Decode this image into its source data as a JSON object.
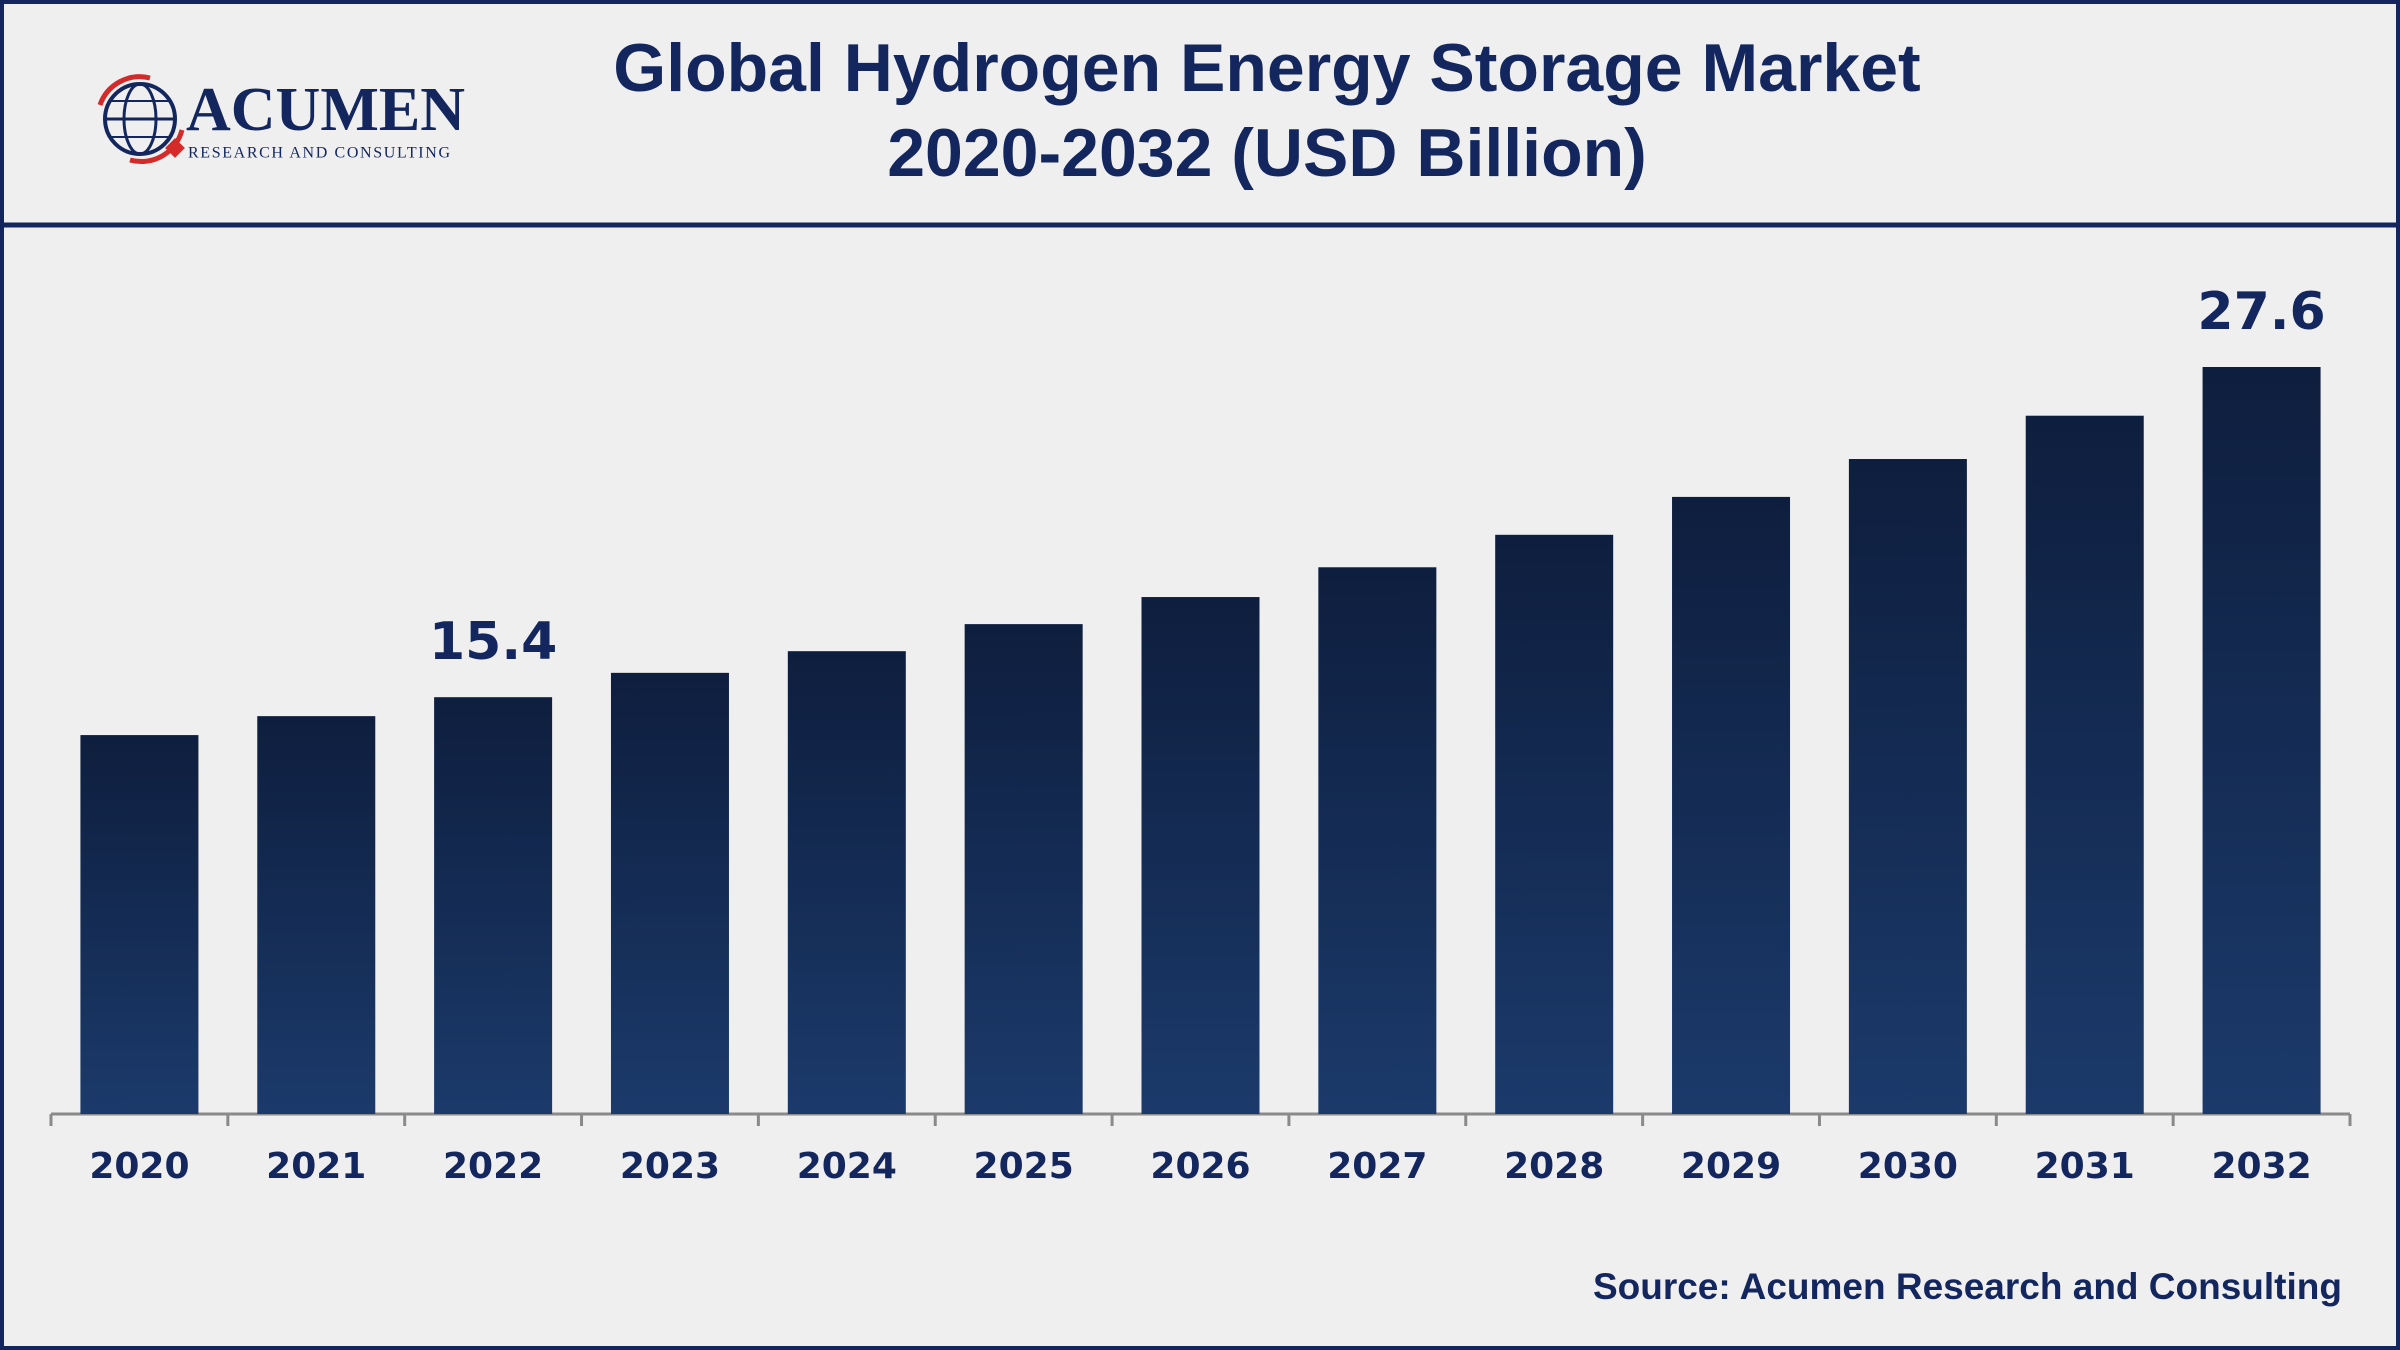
{
  "logo": {
    "name": "ACUMEN",
    "tagline": "RESEARCH AND CONSULTING"
  },
  "chart_data": {
    "type": "bar",
    "title": "Global Hydrogen Energy Storage Market",
    "subtitle": "2020-2032 (USD Billion)",
    "categories": [
      "2020",
      "2021",
      "2022",
      "2023",
      "2024",
      "2025",
      "2026",
      "2027",
      "2028",
      "2029",
      "2030",
      "2031",
      "2032"
    ],
    "values": [
      14.0,
      14.7,
      15.4,
      16.3,
      17.1,
      18.1,
      19.1,
      20.2,
      21.4,
      22.8,
      24.2,
      25.8,
      27.6
    ],
    "value_labels": [
      null,
      null,
      "15.4",
      null,
      null,
      null,
      null,
      null,
      null,
      null,
      null,
      null,
      "27.6"
    ],
    "color": "#1b3a6b",
    "source": "Source: Acumen Research and Consulting"
  }
}
